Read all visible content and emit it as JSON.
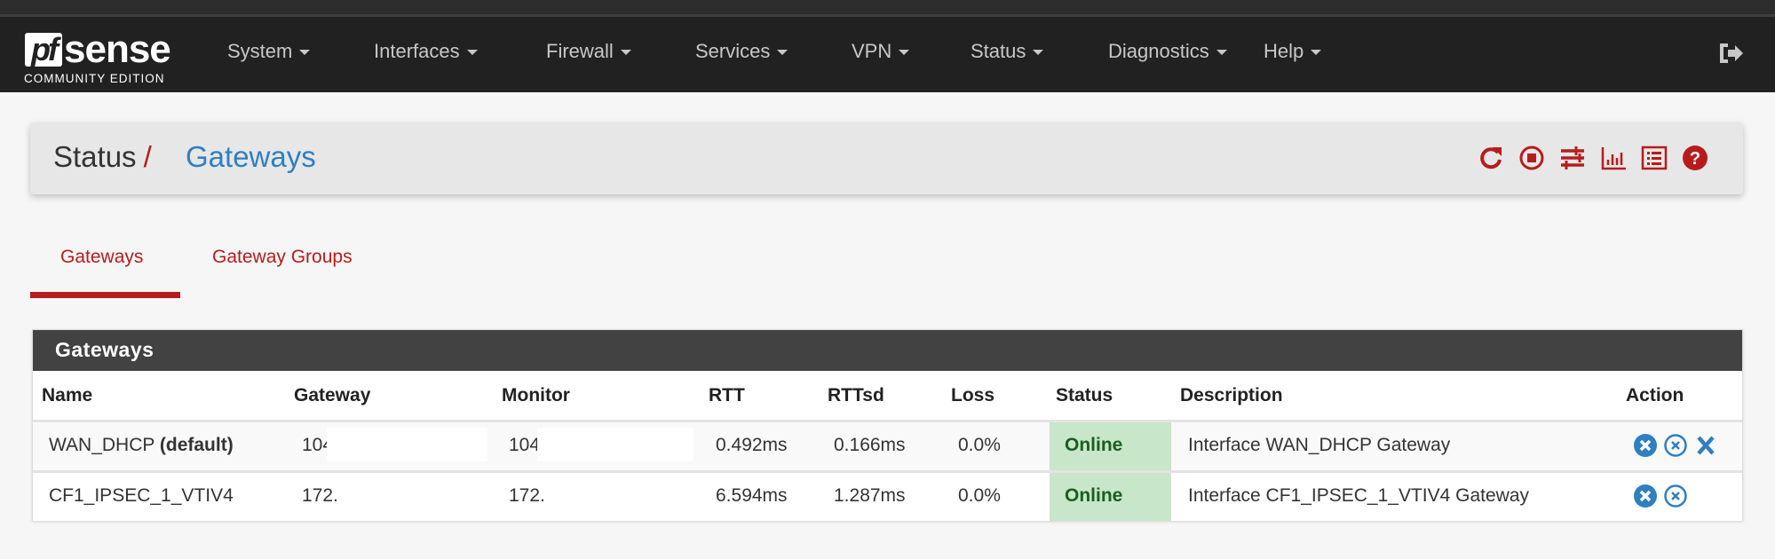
{
  "brand": {
    "logo_text": "pfsense",
    "logo_mark": "pf",
    "logo_word": "sense",
    "edition": "COMMUNITY EDITION"
  },
  "nav": {
    "items": [
      {
        "label": "System"
      },
      {
        "label": "Interfaces"
      },
      {
        "label": "Firewall"
      },
      {
        "label": "Services"
      },
      {
        "label": "VPN"
      },
      {
        "label": "Status"
      },
      {
        "label": "Diagnostics"
      },
      {
        "label": "Help"
      }
    ],
    "logout_icon": "sign-out-icon"
  },
  "breadcrumb": {
    "parent": "Status",
    "separator": "/",
    "current": "Gateways"
  },
  "header_icons": [
    "refresh-icon",
    "stop-circle-icon",
    "sliders-icon",
    "bar-chart-icon",
    "list-alt-icon",
    "question-circle-icon"
  ],
  "tabs": [
    {
      "label": "Gateways",
      "active": true
    },
    {
      "label": "Gateway Groups",
      "active": false
    }
  ],
  "panel": {
    "title": "Gateways",
    "columns": [
      "Name",
      "Gateway",
      "Monitor",
      "RTT",
      "RTTsd",
      "Loss",
      "Status",
      "Description",
      "Action"
    ],
    "rows": [
      {
        "name": "WAN_DHCP",
        "name_suffix": "(default)",
        "gateway": "104.",
        "monitor": "104.",
        "rtt": "0.492ms",
        "rttsd": "0.166ms",
        "loss": "0.0%",
        "status": "Online",
        "description": "Interface WAN_DHCP Gateway",
        "actions": [
          "times-circle-icon",
          "times-circle-outline-icon",
          "times-icon"
        ]
      },
      {
        "name": "CF1_IPSEC_1_VTIV4",
        "name_suffix": "",
        "gateway": "172.",
        "monitor": "172.",
        "rtt": "6.594ms",
        "rttsd": "1.287ms",
        "loss": "0.0%",
        "status": "Online",
        "description": "Interface CF1_IPSEC_1_VTIV4 Gateway",
        "actions": [
          "times-circle-icon",
          "times-circle-outline-icon"
        ]
      }
    ]
  },
  "colors": {
    "navbar": "#212121",
    "accent_red": "#b71c1c",
    "link_blue": "#2f7fc1",
    "online_bg": "#c8e6c9",
    "online_text": "#1b5e20",
    "action_blue": "#2f7fc1"
  }
}
